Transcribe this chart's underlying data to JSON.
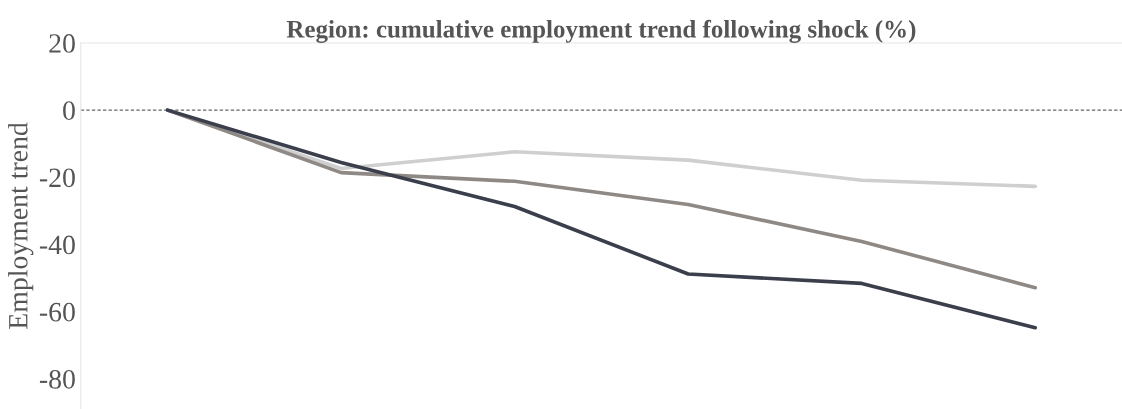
{
  "chart_data": {
    "type": "line",
    "title": "Region: cumulative employment trend following shock (%)",
    "ylabel": "Employment trend",
    "categories": [
      null,
      null,
      null,
      null,
      null,
      null
    ],
    "series": [
      {
        "color": "#cfcfcf",
        "values": [
          0,
          -17.4,
          -12.4,
          -14.9,
          -20.9,
          -22.7
        ]
      },
      {
        "color": "#8f8985",
        "values": [
          0,
          -18.6,
          -21.2,
          -28.1,
          -39.1,
          -52.9
        ]
      },
      {
        "color": "#3b3f4c",
        "values": [
          0,
          -15.6,
          -28.7,
          -48.8,
          -51.6,
          -64.8
        ]
      }
    ],
    "ylim": [
      -89,
      20
    ],
    "yticks": [
      20,
      0,
      -20,
      -40,
      -60,
      -80
    ],
    "ref_lines": [
      {
        "axis": "y",
        "value": 0,
        "color": "#666666",
        "line_style": "dashed"
      }
    ],
    "grid": false,
    "legend": false,
    "tick_labels": "y",
    "marker": "none",
    "line_style": "solid"
  }
}
